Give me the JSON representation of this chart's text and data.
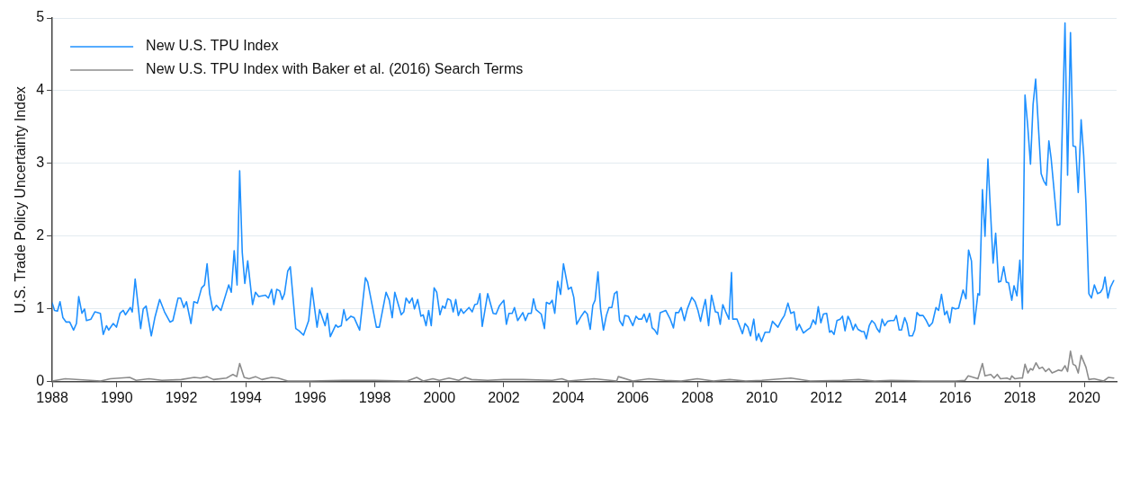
{
  "chart_data": {
    "type": "line",
    "ylabel": "U.S. Trade Policy Uncertainty Index",
    "xlim": [
      1988,
      2021
    ],
    "xticks": [
      1988,
      1990,
      1992,
      1994,
      1996,
      1998,
      2000,
      2002,
      2004,
      2006,
      2008,
      2010,
      2012,
      2014,
      2016,
      2018,
      2020
    ],
    "ylim": [
      0,
      5
    ],
    "yticks": [
      0,
      1,
      2,
      3,
      4,
      5
    ],
    "grid": "y",
    "legend": "top left",
    "marker": "none",
    "line_style": "solid",
    "series": [
      {
        "name": "New U.S. TPU Index",
        "color": "#1e90ff",
        "x": [
          1988.0,
          1988.07,
          1988.16,
          1988.24,
          1988.33,
          1988.43,
          1988.54,
          1988.66,
          1988.75,
          1988.82,
          1988.92,
          1989.0,
          1989.06,
          1989.2,
          1989.32,
          1989.49,
          1989.58,
          1989.68,
          1989.75,
          1989.89,
          1989.99,
          1990.1,
          1990.2,
          1990.27,
          1990.42,
          1990.48,
          1990.57,
          1990.74,
          1990.82,
          1990.91,
          1991.07,
          1991.18,
          1991.33,
          1991.48,
          1991.65,
          1991.74,
          1991.9,
          1991.98,
          1992.08,
          1992.16,
          1992.3,
          1992.39,
          1992.5,
          1992.63,
          1992.72,
          1992.8,
          1992.88,
          1992.98,
          1993.09,
          1993.23,
          1993.47,
          1993.55,
          1993.64,
          1993.73,
          1993.81,
          1993.89,
          1993.97,
          1994.06,
          1994.21,
          1994.3,
          1994.4,
          1994.61,
          1994.7,
          1994.8,
          1994.87,
          1994.96,
          1995.05,
          1995.13,
          1995.2,
          1995.3,
          1995.38,
          1995.55,
          1995.65,
          1995.79,
          1995.95,
          1996.05,
          1996.21,
          1996.29,
          1996.46,
          1996.53,
          1996.62,
          1996.79,
          1996.86,
          1996.96,
          1997.04,
          1997.12,
          1997.26,
          1997.36,
          1997.53,
          1997.71,
          1997.78,
          1998.05,
          1998.14,
          1998.35,
          1998.45,
          1998.54,
          1998.62,
          1998.82,
          1998.9,
          1998.97,
          1999.07,
          1999.16,
          1999.23,
          1999.33,
          1999.43,
          1999.5,
          1999.59,
          1999.67,
          1999.75,
          1999.84,
          1999.92,
          2000.02,
          2000.1,
          2000.18,
          2000.26,
          2000.35,
          2000.43,
          2000.51,
          2000.59,
          2000.67,
          2000.75,
          2000.92,
          2001.02,
          2001.1,
          2001.18,
          2001.26,
          2001.33,
          2001.5,
          2001.67,
          2001.76,
          2001.86,
          2002.0,
          2002.08,
          2002.16,
          2002.26,
          2002.33,
          2002.43,
          2002.59,
          2002.67,
          2002.76,
          2002.85,
          2002.92,
          2003.0,
          2003.16,
          2003.26,
          2003.32,
          2003.42,
          2003.5,
          2003.58,
          2003.67,
          2003.76,
          2003.85,
          2004.0,
          2004.09,
          2004.17,
          2004.26,
          2004.4,
          2004.51,
          2004.59,
          2004.68,
          2004.76,
          2004.83,
          2004.92,
          2005.0,
          2005.09,
          2005.18,
          2005.26,
          2005.35,
          2005.43,
          2005.51,
          2005.59,
          2005.69,
          2005.75,
          2005.86,
          2006.0,
          2006.1,
          2006.18,
          2006.28,
          2006.35,
          2006.43,
          2006.52,
          2006.6,
          2006.68,
          2006.76,
          2006.85,
          2007.02,
          2007.16,
          2007.26,
          2007.33,
          2007.42,
          2007.5,
          2007.6,
          2007.69,
          2007.83,
          2007.93,
          2008.02,
          2008.1,
          2008.17,
          2008.25,
          2008.35,
          2008.44,
          2008.56,
          2008.64,
          2008.71,
          2008.79,
          2008.88,
          2008.98,
          2009.06,
          2009.1,
          2009.23,
          2009.4,
          2009.48,
          2009.57,
          2009.65,
          2009.75,
          2009.83,
          2009.9,
          2009.99,
          2010.1,
          2010.24,
          2010.33,
          2010.5,
          2010.6,
          2010.7,
          2010.81,
          2010.9,
          2011.0,
          2011.08,
          2011.16,
          2011.29,
          2011.4,
          2011.5,
          2011.59,
          2011.67,
          2011.75,
          2011.83,
          2011.91,
          2012.01,
          2012.1,
          2012.16,
          2012.24,
          2012.33,
          2012.43,
          2012.5,
          2012.58,
          2012.67,
          2012.74,
          2012.83,
          2012.9,
          2012.98,
          2013.1,
          2013.17,
          2013.24,
          2013.33,
          2013.41,
          2013.5,
          2013.57,
          2013.65,
          2013.73,
          2013.81,
          2013.9,
          2014.0,
          2014.1,
          2014.17,
          2014.26,
          2014.33,
          2014.43,
          2014.5,
          2014.57,
          2014.67,
          2014.74,
          2014.81,
          2014.89,
          2015.0,
          2015.1,
          2015.19,
          2015.29,
          2015.4,
          2015.48,
          2015.57,
          2015.67,
          2015.74,
          2015.83,
          2015.9,
          2016.0,
          2016.1,
          2016.24,
          2016.33,
          2016.41,
          2016.5,
          2016.59,
          2016.7,
          2016.75,
          2016.84,
          2016.92,
          2017.01,
          2017.17,
          2017.25,
          2017.34,
          2017.41,
          2017.5,
          2017.58,
          2017.65,
          2017.75,
          2017.82,
          2017.91,
          2018.0,
          2018.08,
          2018.16,
          2018.24,
          2018.33,
          2018.41,
          2018.49,
          2018.66,
          2018.74,
          2018.82,
          2018.9,
          2018.97,
          2019.16,
          2019.24,
          2019.4,
          2019.48,
          2019.57,
          2019.65,
          2019.73,
          2019.81,
          2019.9,
          2019.98,
          2020.05,
          2020.14,
          2020.22,
          2020.31,
          2020.41,
          2020.5,
          2020.57,
          2020.64,
          2020.73,
          2020.81,
          2020.91
        ],
        "values": [
          1.08,
          0.98,
          0.97,
          1.1,
          0.88,
          0.82,
          0.82,
          0.71,
          0.8,
          1.17,
          0.94,
          1.0,
          0.84,
          0.86,
          0.96,
          0.94,
          0.65,
          0.77,
          0.71,
          0.8,
          0.75,
          0.94,
          0.98,
          0.92,
          1.02,
          0.96,
          1.41,
          0.73,
          1.0,
          1.04,
          0.63,
          0.88,
          1.13,
          0.96,
          0.82,
          0.84,
          1.15,
          1.15,
          1.02,
          1.1,
          0.8,
          1.1,
          1.08,
          1.29,
          1.33,
          1.62,
          1.21,
          0.98,
          1.05,
          0.98,
          1.33,
          1.23,
          1.8,
          1.33,
          2.9,
          1.78,
          1.35,
          1.66,
          1.06,
          1.23,
          1.17,
          1.19,
          1.15,
          1.27,
          1.06,
          1.27,
          1.25,
          1.13,
          1.21,
          1.52,
          1.58,
          0.73,
          0.7,
          0.64,
          0.84,
          1.29,
          0.75,
          0.99,
          0.77,
          0.94,
          0.62,
          0.78,
          0.75,
          0.77,
          0.99,
          0.84,
          0.9,
          0.88,
          0.71,
          1.43,
          1.37,
          0.75,
          0.75,
          1.23,
          1.12,
          0.88,
          1.23,
          0.92,
          0.96,
          1.15,
          1.08,
          1.15,
          1.0,
          1.13,
          0.9,
          0.92,
          0.77,
          0.98,
          0.77,
          1.29,
          1.23,
          0.92,
          1.04,
          1.01,
          1.14,
          1.12,
          0.96,
          1.13,
          0.91,
          1.0,
          0.94,
          1.02,
          0.96,
          1.06,
          1.07,
          1.21,
          0.76,
          1.21,
          0.94,
          0.93,
          1.04,
          1.12,
          0.79,
          0.94,
          0.94,
          1.02,
          0.84,
          0.95,
          0.84,
          0.94,
          0.94,
          1.14,
          0.99,
          0.93,
          0.73,
          1.09,
          1.07,
          1.12,
          0.94,
          1.38,
          1.2,
          1.62,
          1.27,
          1.3,
          1.16,
          0.79,
          0.9,
          0.97,
          0.93,
          0.72,
          1.05,
          1.12,
          1.51,
          1.0,
          0.71,
          0.91,
          1.02,
          1.02,
          1.21,
          1.24,
          0.84,
          0.77,
          0.91,
          0.9,
          0.77,
          0.9,
          0.86,
          0.86,
          0.93,
          0.82,
          0.94,
          0.74,
          0.71,
          0.65,
          0.95,
          0.98,
          0.86,
          0.74,
          0.95,
          0.95,
          1.02,
          0.84,
          1.0,
          1.16,
          1.1,
          0.98,
          0.83,
          0.98,
          1.13,
          0.77,
          1.19,
          0.96,
          0.95,
          0.79,
          1.06,
          0.96,
          0.86,
          1.5,
          0.86,
          0.86,
          0.66,
          0.8,
          0.75,
          0.63,
          0.86,
          0.57,
          0.66,
          0.55,
          0.68,
          0.68,
          0.83,
          0.75,
          0.84,
          0.91,
          1.08,
          0.94,
          0.96,
          0.71,
          0.79,
          0.67,
          0.71,
          0.74,
          0.85,
          0.79,
          1.03,
          0.81,
          0.93,
          0.94,
          0.68,
          0.7,
          0.65,
          0.84,
          0.86,
          0.9,
          0.7,
          0.9,
          0.84,
          0.71,
          0.79,
          0.72,
          0.69,
          0.69,
          0.59,
          0.77,
          0.84,
          0.8,
          0.73,
          0.68,
          0.86,
          0.77,
          0.83,
          0.84,
          0.84,
          0.91,
          0.71,
          0.71,
          0.88,
          0.8,
          0.63,
          0.63,
          0.71,
          0.95,
          0.91,
          0.91,
          0.84,
          0.76,
          0.81,
          1.02,
          0.98,
          1.2,
          0.92,
          0.97,
          0.81,
          1.02,
          1.0,
          1.01,
          1.26,
          1.14,
          1.81,
          1.66,
          0.79,
          1.21,
          1.19,
          2.64,
          2.0,
          3.06,
          1.63,
          2.04,
          1.37,
          1.38,
          1.58,
          1.37,
          1.36,
          1.12,
          1.32,
          1.18,
          1.67,
          1.0,
          3.94,
          3.54,
          2.99,
          3.81,
          4.16,
          2.86,
          2.76,
          2.7,
          3.31,
          3.07,
          2.15,
          2.16,
          4.93,
          2.84,
          4.8,
          3.24,
          3.23,
          2.6,
          3.6,
          3.11,
          2.45,
          1.21,
          1.15,
          1.33,
          1.21,
          1.23,
          1.28,
          1.44,
          1.15,
          1.3,
          1.39
        ]
      },
      {
        "name": "New U.S. TPU Index with Baker et al. (2016) Search Terms",
        "color": "#8c8c8c",
        "x": [
          1988.0,
          1988.4,
          1989.5,
          1989.8,
          1990.4,
          1990.6,
          1991.0,
          1991.4,
          1992.0,
          1992.4,
          1992.6,
          1992.8,
          1993.0,
          1993.4,
          1993.6,
          1993.72,
          1993.81,
          1993.95,
          1994.1,
          1994.3,
          1994.5,
          1994.8,
          1995.0,
          1995.3,
          1996.0,
          1997.0,
          1998.0,
          1999.0,
          1999.3,
          1999.5,
          1999.8,
          2000.0,
          2000.3,
          2000.6,
          2000.8,
          2001.0,
          2001.5,
          2002.0,
          2002.6,
          2003.5,
          2003.8,
          2004.0,
          2004.8,
          2005.5,
          2005.55,
          2006.0,
          2006.5,
          2007.0,
          2007.5,
          2008.0,
          2008.5,
          2009.0,
          2009.5,
          2010.0,
          2010.9,
          2011.5,
          2012.5,
          2013.0,
          2013.5,
          2014.0,
          2015.0,
          2016.0,
          2016.3,
          2016.4,
          2016.7,
          2016.84,
          2016.92,
          2017.1,
          2017.2,
          2017.3,
          2017.4,
          2017.6,
          2017.7,
          2017.75,
          2017.85,
          2018.0,
          2018.08,
          2018.16,
          2018.25,
          2018.33,
          2018.4,
          2018.5,
          2018.6,
          2018.7,
          2018.8,
          2018.9,
          2019.0,
          2019.1,
          2019.2,
          2019.3,
          2019.4,
          2019.48,
          2019.57,
          2019.65,
          2019.73,
          2019.81,
          2019.9,
          2020.05,
          2020.14,
          2020.3,
          2020.5,
          2020.6,
          2020.75,
          2020.91
        ],
        "values": [
          0.01,
          0.04,
          0.01,
          0.04,
          0.06,
          0.02,
          0.04,
          0.02,
          0.03,
          0.06,
          0.05,
          0.07,
          0.03,
          0.05,
          0.1,
          0.07,
          0.25,
          0.06,
          0.04,
          0.07,
          0.03,
          0.06,
          0.05,
          0.01,
          0.01,
          0.02,
          0.02,
          0.01,
          0.06,
          0.01,
          0.04,
          0.02,
          0.05,
          0.02,
          0.06,
          0.03,
          0.02,
          0.03,
          0.03,
          0.02,
          0.04,
          0.01,
          0.04,
          0.01,
          0.07,
          0.01,
          0.04,
          0.02,
          0.01,
          0.04,
          0.01,
          0.03,
          0.01,
          0.02,
          0.05,
          0.01,
          0.02,
          0.03,
          0.01,
          0.02,
          0.01,
          0.01,
          0.02,
          0.08,
          0.04,
          0.25,
          0.08,
          0.1,
          0.05,
          0.1,
          0.04,
          0.05,
          0.03,
          0.08,
          0.04,
          0.05,
          0.05,
          0.24,
          0.12,
          0.18,
          0.16,
          0.26,
          0.18,
          0.2,
          0.14,
          0.18,
          0.12,
          0.14,
          0.16,
          0.15,
          0.22,
          0.14,
          0.42,
          0.24,
          0.22,
          0.12,
          0.36,
          0.2,
          0.03,
          0.04,
          0.02,
          0.01,
          0.06,
          0.05
        ]
      }
    ]
  }
}
